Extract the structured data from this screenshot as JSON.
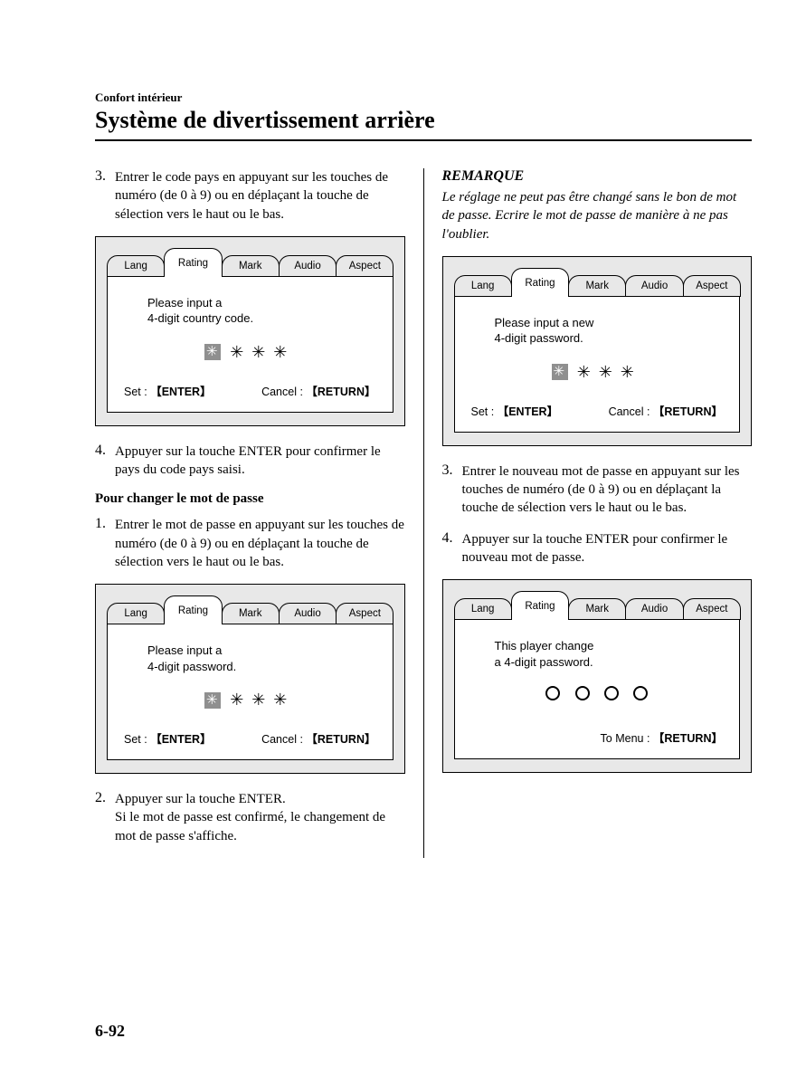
{
  "header": {
    "breadcrumb": "Confort intérieur",
    "title": "Système de divertissement arrière"
  },
  "tabs": [
    "Lang",
    "Rating",
    "Mark",
    "Audio",
    "Aspect"
  ],
  "active_tab_index": 1,
  "left": {
    "step3": "Entrer le code pays en appuyant sur les touches de numéro (de 0 à 9) ou en déplaçant la touche de sélection vers le haut ou le bas.",
    "screen1": {
      "msg1": "Please input a",
      "msg2": "4-digit country code.",
      "set_label": "Set :",
      "set_btn": "【ENTER】",
      "cancel_label": "Cancel :",
      "cancel_btn": "【RETURN】"
    },
    "step4": "Appuyer sur la touche ENTER pour confirmer le pays du code pays saisi.",
    "subheading": "Pour changer le mot de passe",
    "step1b": "Entrer le mot de passe en appuyant sur les touches de numéro (de 0 à 9) ou en déplaçant la touche de sélection vers le haut ou le bas.",
    "screen2": {
      "msg1": "Please input a",
      "msg2": "4-digit password.",
      "set_label": "Set :",
      "set_btn": "【ENTER】",
      "cancel_label": "Cancel :",
      "cancel_btn": "【RETURN】"
    },
    "step2b_l1": "Appuyer sur la touche ENTER.",
    "step2b_l2": "Si le mot de passe est confirmé, le changement de mot de passe s'affiche."
  },
  "right": {
    "remark_title": "REMARQUE",
    "remark_body": "Le réglage ne peut pas être changé sans le bon de mot de passe. Ecrire le mot de passe de manière à ne pas l'oublier.",
    "screen1": {
      "msg1": "Please input a new",
      "msg2": "4-digit password.",
      "set_label": "Set :",
      "set_btn": "【ENTER】",
      "cancel_label": "Cancel :",
      "cancel_btn": "【RETURN】"
    },
    "step3": "Entrer le nouveau mot de passe en appuyant sur les touches de numéro (de 0 à 9) ou en déplaçant la touche de sélection vers le haut ou le bas.",
    "step4": "Appuyer sur la touche ENTER pour confirmer le nouveau mot de passe.",
    "screen2": {
      "msg1": "This player change",
      "msg2": "a 4-digit password.",
      "tomenu_label": "To Menu :",
      "tomenu_btn": "【RETURN】"
    }
  },
  "page_number": "6-92",
  "colors": {
    "screen_bg": "#e8e8e8",
    "panel_bg": "#ffffff",
    "digit_box_bg": "#8f8f8f"
  }
}
